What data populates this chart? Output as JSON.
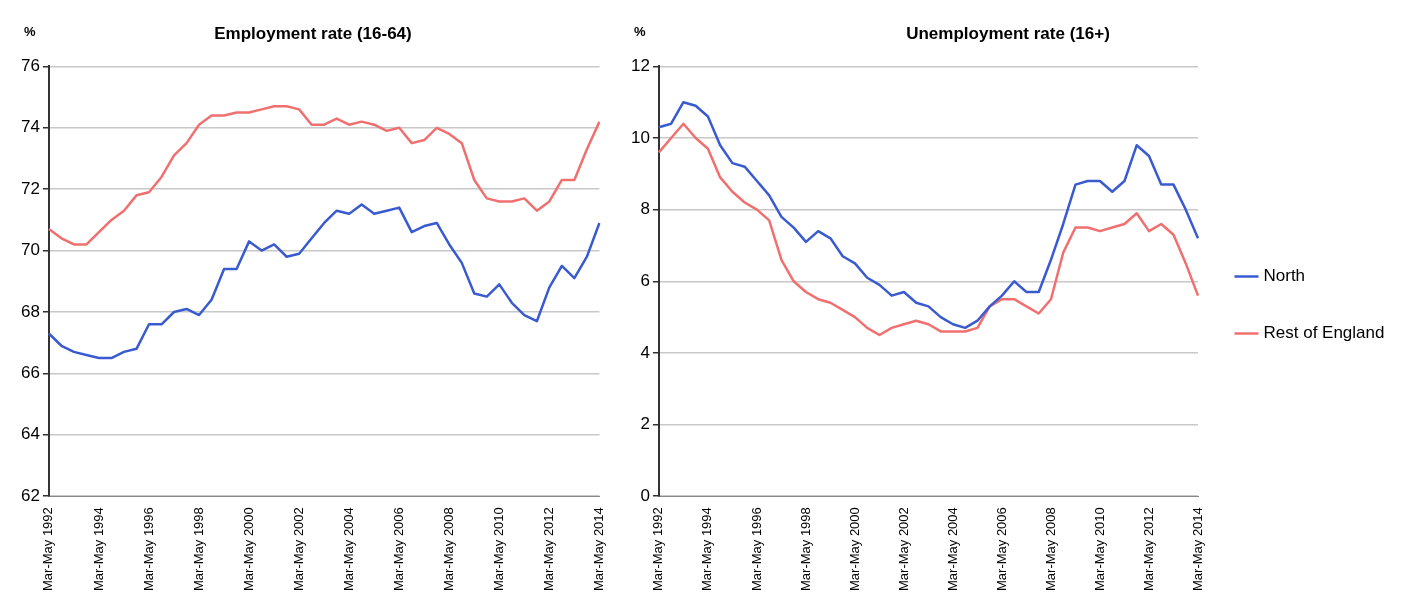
{
  "chart_data": [
    {
      "type": "line",
      "title": "Employment rate (16-64)",
      "ylabel": "%",
      "categories": [
        "Mar-May 1992",
        null,
        null,
        null,
        "Mar-May 1994",
        null,
        null,
        null,
        "Mar-May 1996",
        null,
        null,
        null,
        "Mar-May 1998",
        null,
        null,
        null,
        "Mar-May 2000",
        null,
        null,
        null,
        "Mar-May 2002",
        null,
        null,
        null,
        "Mar-May 2004",
        null,
        null,
        null,
        "Mar-May 2006",
        null,
        null,
        null,
        "Mar-May 2008",
        null,
        null,
        null,
        "Mar-May 2010",
        null,
        null,
        null,
        "Mar-May 2012",
        null,
        null,
        null,
        "Mar-May 2014"
      ],
      "ylim": [
        62,
        76
      ],
      "yticks": [
        62,
        64,
        66,
        68,
        70,
        72,
        74,
        76
      ],
      "grid": "y",
      "legend": false,
      "marker": "none",
      "series": [
        {
          "color": "#3a5bd0",
          "values": [
            67.3,
            66.9,
            66.7,
            66.6,
            66.5,
            66.5,
            66.7,
            66.8,
            67.6,
            67.6,
            68.0,
            68.1,
            67.9,
            68.4,
            69.4,
            69.4,
            70.3,
            70.0,
            70.2,
            69.8,
            69.9,
            70.4,
            70.9,
            71.3,
            71.2,
            71.5,
            71.2,
            71.3,
            71.4,
            70.6,
            70.8,
            70.9,
            70.2,
            69.6,
            68.6,
            68.5,
            68.9,
            68.3,
            67.9,
            67.7,
            68.8,
            69.5,
            69.1,
            69.8,
            70.9
          ]
        },
        {
          "color": "#f07070",
          "values": [
            70.7,
            70.4,
            70.2,
            70.2,
            70.6,
            71.0,
            71.3,
            71.8,
            71.9,
            72.4,
            73.1,
            73.5,
            74.1,
            74.4,
            74.4,
            74.5,
            74.5,
            74.6,
            74.7,
            74.7,
            74.6,
            74.1,
            74.1,
            74.3,
            74.1,
            74.2,
            74.1,
            73.9,
            74.0,
            73.5,
            73.6,
            74.0,
            73.8,
            73.5,
            72.3,
            71.7,
            71.6,
            71.6,
            71.7,
            71.3,
            71.6,
            72.3,
            72.3,
            73.3,
            74.2
          ]
        }
      ]
    },
    {
      "type": "line",
      "title": "Unemployment rate (16+)",
      "ylabel": "%",
      "categories": [
        "Mar-May 1992",
        null,
        null,
        null,
        "Mar-May 1994",
        null,
        null,
        null,
        "Mar-May 1996",
        null,
        null,
        null,
        "Mar-May 1998",
        null,
        null,
        null,
        "Mar-May 2000",
        null,
        null,
        null,
        "Mar-May 2002",
        null,
        null,
        null,
        "Mar-May 2004",
        null,
        null,
        null,
        "Mar-May 2006",
        null,
        null,
        null,
        "Mar-May 2008",
        null,
        null,
        null,
        "Mar-May 2010",
        null,
        null,
        null,
        "Mar-May 2012",
        null,
        null,
        null,
        "Mar-May 2014"
      ],
      "ylim": [
        0,
        12
      ],
      "yticks": [
        0,
        2,
        4,
        6,
        8,
        10,
        12
      ],
      "grid": "y",
      "legend": "right",
      "marker": "none",
      "series": [
        {
          "name": "North",
          "color": "#3a5bd0",
          "values": [
            10.3,
            10.4,
            11.0,
            10.9,
            10.6,
            9.8,
            9.3,
            9.2,
            8.8,
            8.4,
            7.8,
            7.5,
            7.1,
            7.4,
            7.2,
            6.7,
            6.5,
            6.1,
            5.9,
            5.6,
            5.7,
            5.4,
            5.3,
            5.0,
            4.8,
            4.7,
            4.9,
            5.3,
            5.6,
            6.0,
            5.7,
            5.7,
            6.6,
            7.6,
            8.7,
            8.8,
            8.8,
            8.5,
            8.8,
            9.8,
            9.5,
            8.7,
            8.7,
            8.0,
            7.2
          ]
        },
        {
          "name": "Rest of England",
          "color": "#f07070",
          "values": [
            9.6,
            10.0,
            10.4,
            10.0,
            9.7,
            8.9,
            8.5,
            8.2,
            8.0,
            7.7,
            6.6,
            6.0,
            5.7,
            5.5,
            5.4,
            5.2,
            5.0,
            4.7,
            4.5,
            4.7,
            4.8,
            4.9,
            4.8,
            4.6,
            4.6,
            4.6,
            4.7,
            5.3,
            5.5,
            5.5,
            5.3,
            5.1,
            5.5,
            6.8,
            7.5,
            7.5,
            7.4,
            7.5,
            7.6,
            7.9,
            7.4,
            7.6,
            7.3,
            6.5,
            5.6
          ]
        }
      ]
    }
  ]
}
